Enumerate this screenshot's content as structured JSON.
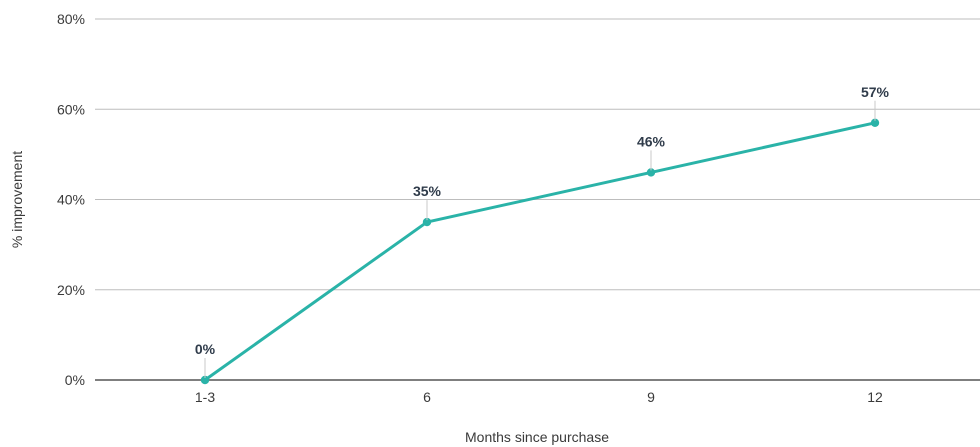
{
  "chart_data": {
    "type": "line",
    "title": "",
    "xlabel": "Months since purchase",
    "ylabel": "% improvement",
    "categories": [
      "1-3",
      "6",
      "9",
      "12"
    ],
    "series": [
      {
        "values": [
          0,
          35,
          46,
          57
        ],
        "color": "#2ab3a8"
      }
    ],
    "data_labels": [
      "0%",
      "35%",
      "46%",
      "57%"
    ],
    "y_ticks": [
      {
        "value": 0,
        "label": "0%"
      },
      {
        "value": 20,
        "label": "20%"
      },
      {
        "value": 40,
        "label": "40%"
      },
      {
        "value": 60,
        "label": "60%"
      },
      {
        "value": 80,
        "label": "80%"
      }
    ],
    "ylim": [
      0,
      80
    ],
    "grid": true,
    "legend": "none"
  }
}
